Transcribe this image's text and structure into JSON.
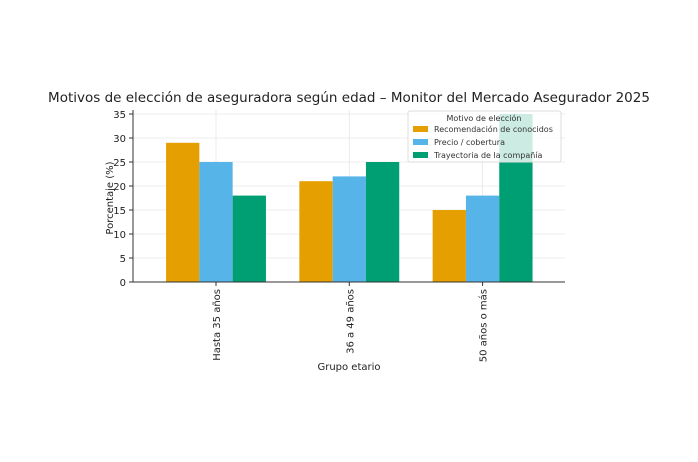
{
  "chart_data": {
    "type": "bar",
    "title": "Motivos de elección de aseguradora según edad – Monitor del Mercado Asegurador 2025",
    "xlabel": "Grupo etario",
    "ylabel": "Porcentaje (%)",
    "categories": [
      "Hasta 35 años",
      "36 a 49 años",
      "50 años o más"
    ],
    "series": [
      {
        "name": "Recomendación de conocidos",
        "color": "#E69F00",
        "values": [
          29,
          21,
          15
        ]
      },
      {
        "name": "Precio / cobertura",
        "color": "#56B4E9",
        "values": [
          25,
          22,
          18
        ]
      },
      {
        "name": "Trayectoria de la compañía",
        "color": "#009E73",
        "values": [
          18,
          25,
          35
        ]
      }
    ],
    "ylim": [
      0,
      36
    ],
    "yticks": [
      0,
      5,
      10,
      15,
      20,
      25,
      30,
      35
    ],
    "grid": true,
    "legend": {
      "title": "Motivo de elección",
      "placement": "top-right"
    }
  }
}
